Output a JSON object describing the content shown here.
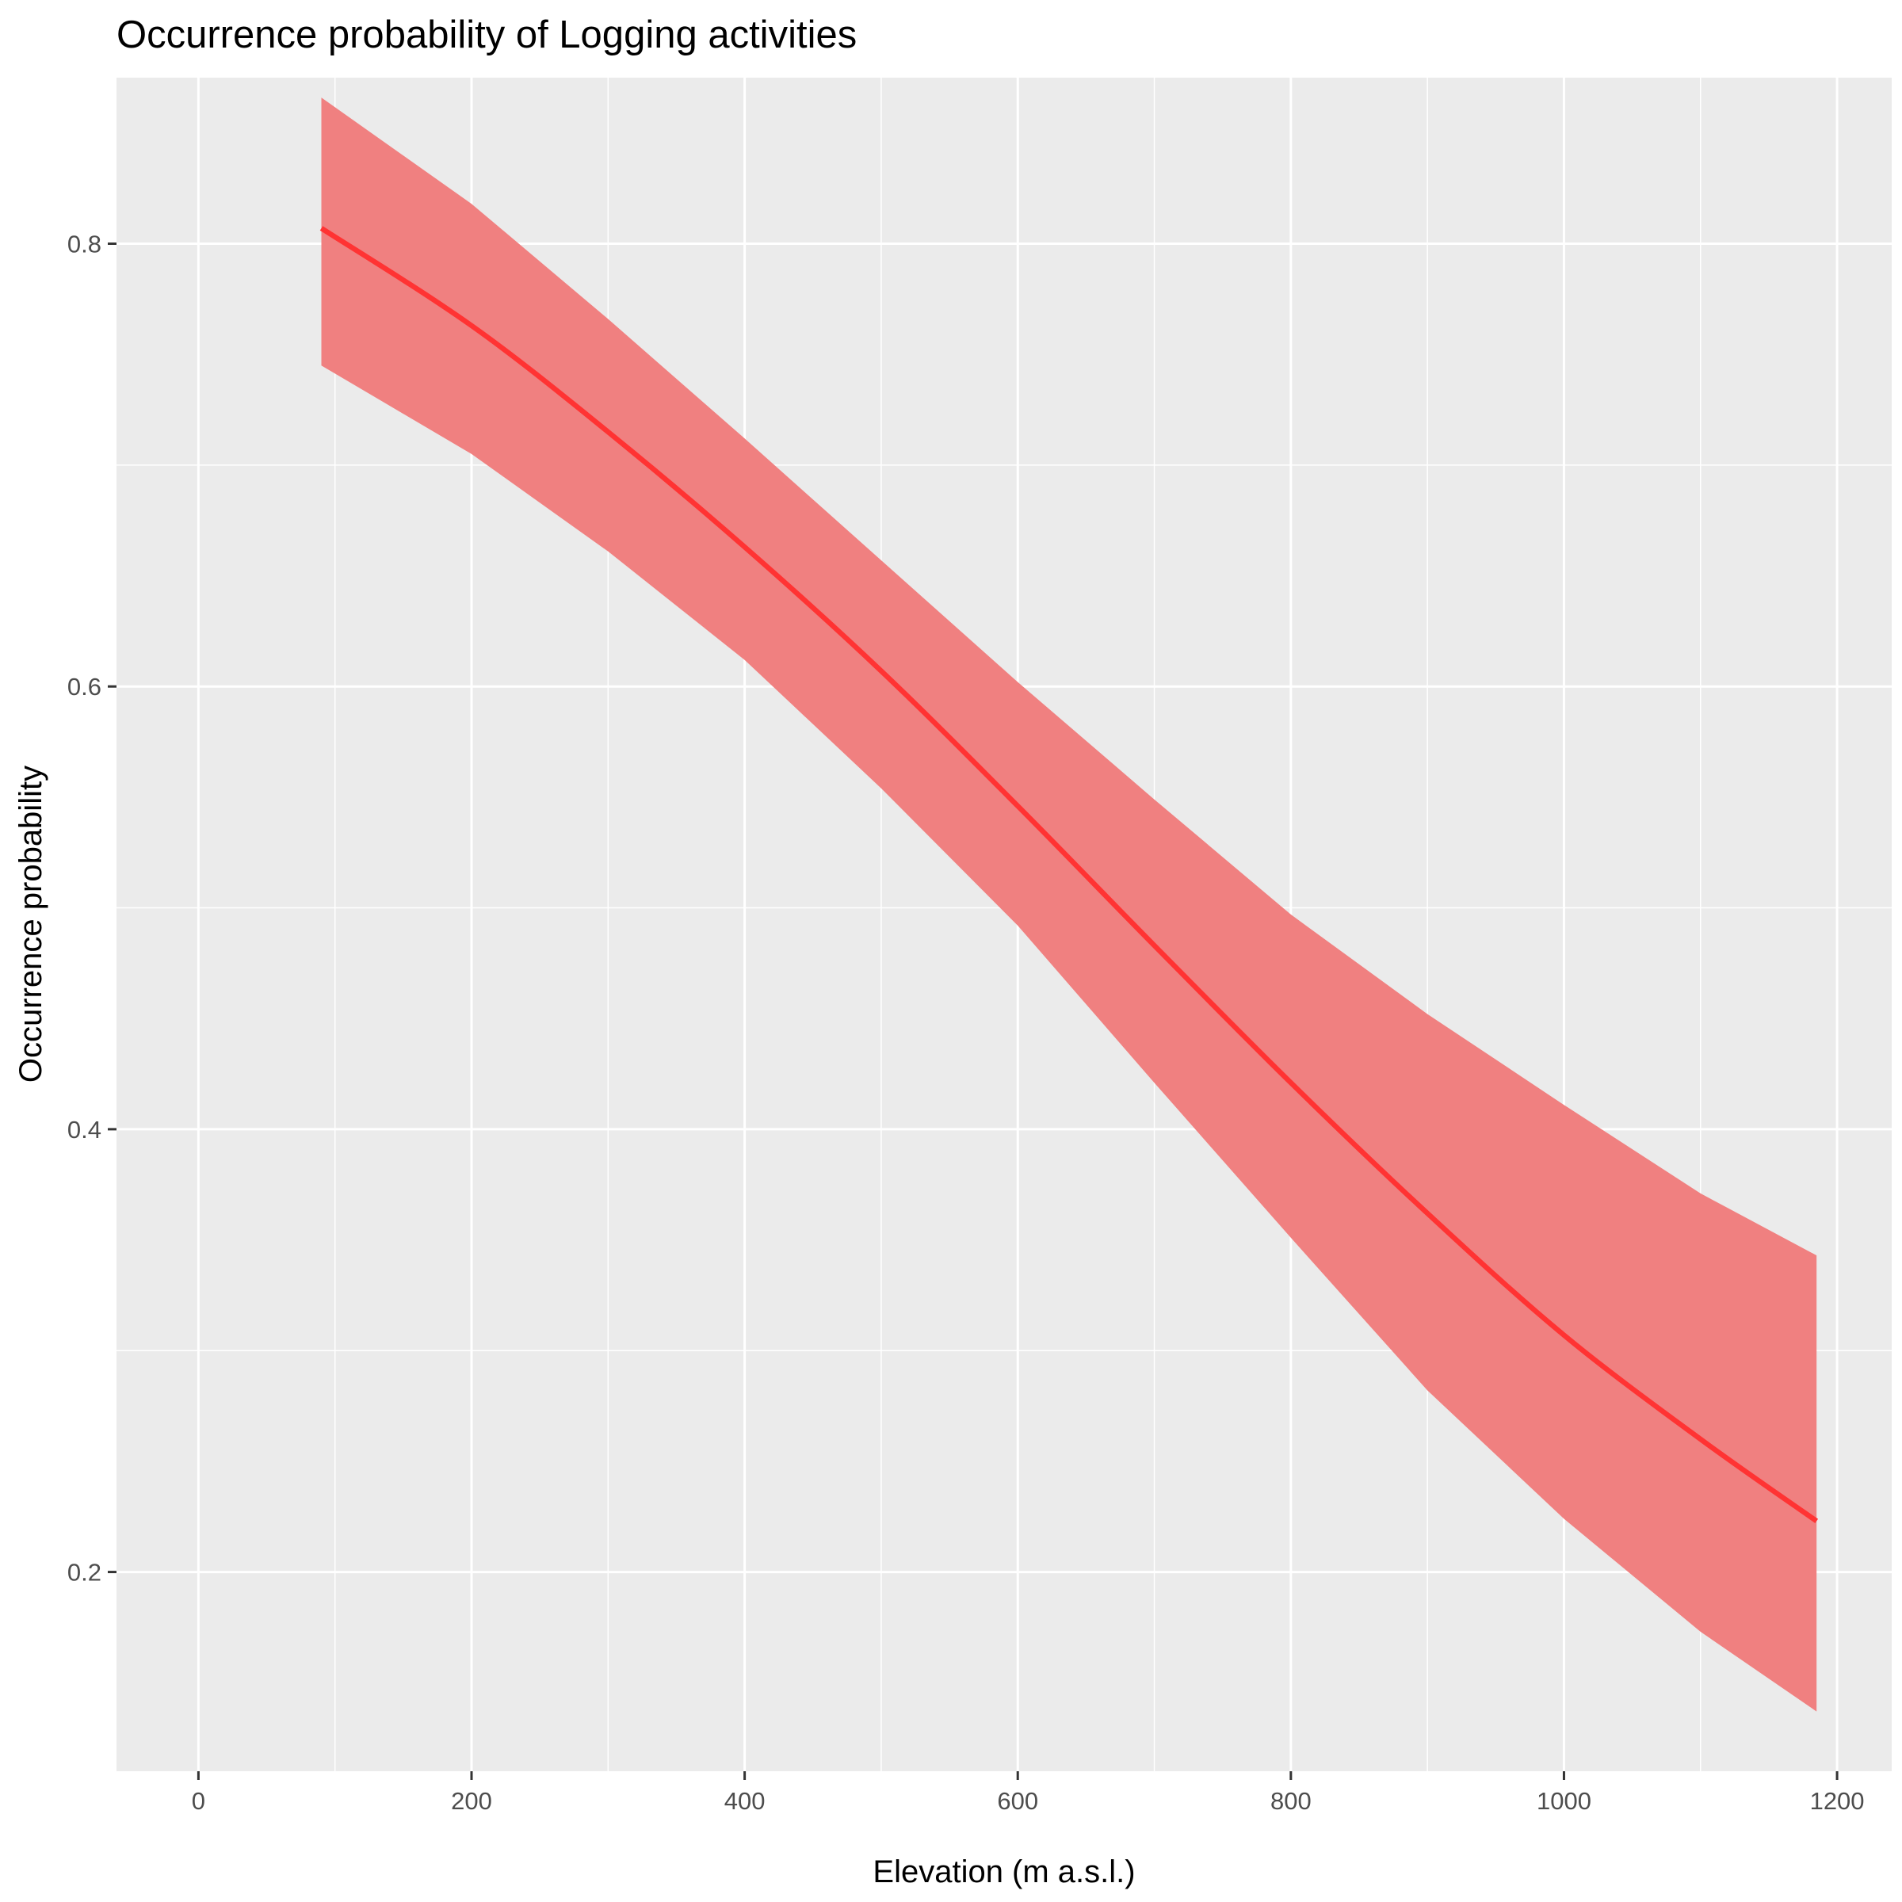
{
  "chart_data": {
    "type": "line",
    "title": "Occurrence probability of Logging activities",
    "xlabel": "Elevation (m a.s.l.)",
    "ylabel": "Occurrence probability",
    "xlim": [
      -60,
      1240
    ],
    "ylim": [
      0.11,
      0.875
    ],
    "x_ticks": [
      0,
      200,
      400,
      600,
      800,
      1000,
      1200
    ],
    "x_tick_labels": [
      "0",
      "200",
      "400",
      "600",
      "800",
      "1000",
      "1200"
    ],
    "y_ticks": [
      0.2,
      0.4,
      0.6,
      0.8
    ],
    "y_tick_labels": [
      "0.2",
      "0.4",
      "0.6",
      "0.8"
    ],
    "grid": true,
    "legend": "none",
    "series": [
      {
        "x": [
          90,
          200,
          300,
          400,
          500,
          600,
          700,
          800,
          900,
          1000,
          1100,
          1185
        ],
        "values": [
          0.807,
          0.763,
          0.715,
          0.663,
          0.607,
          0.546,
          0.483,
          0.421,
          0.362,
          0.307,
          0.26,
          0.223
        ],
        "lower": [
          0.745,
          0.705,
          0.661,
          0.612,
          0.554,
          0.492,
          0.421,
          0.351,
          0.282,
          0.224,
          0.173,
          0.137
        ],
        "upper": [
          0.866,
          0.818,
          0.766,
          0.712,
          0.657,
          0.602,
          0.549,
          0.497,
          0.452,
          0.411,
          0.371,
          0.343
        ]
      }
    ],
    "colors": {
      "line": "#ff3333",
      "ribbon": "#f08080",
      "panel": "#ebebeb",
      "grid": "#ffffff",
      "tick": "#333333"
    }
  }
}
